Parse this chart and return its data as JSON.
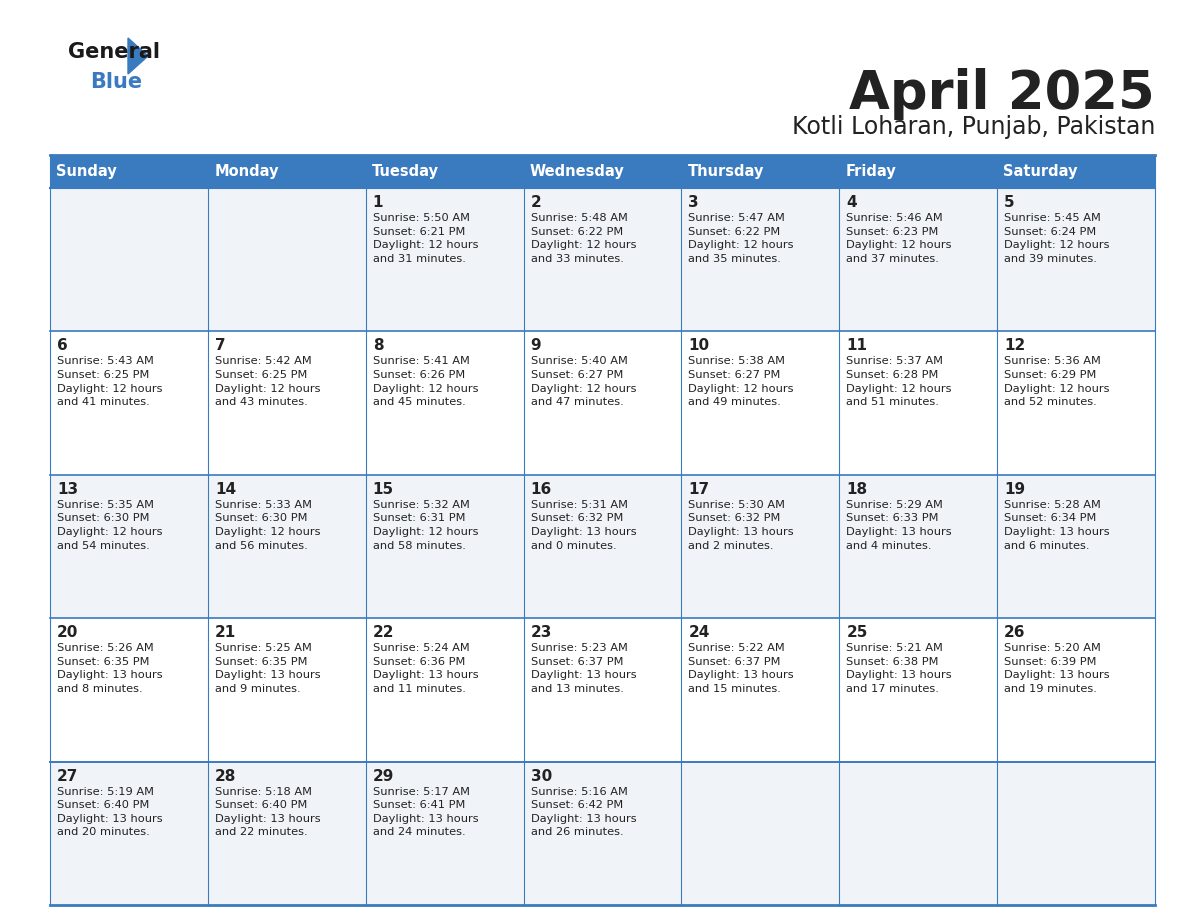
{
  "title": "April 2025",
  "subtitle": "Kotli Loharan, Punjab, Pakistan",
  "header_color": "#3a7abf",
  "header_text_color": "#ffffff",
  "days_of_week": [
    "Sunday",
    "Monday",
    "Tuesday",
    "Wednesday",
    "Thursday",
    "Friday",
    "Saturday"
  ],
  "background_color": "#ffffff",
  "row_bg": [
    "#f0f4f8",
    "#ffffff",
    "#f0f4f8",
    "#ffffff",
    "#f0f4f8"
  ],
  "border_color": "#3a7abf",
  "text_color": "#222222",
  "calendar_data": [
    [
      {
        "day": "",
        "sunrise": "",
        "sunset": "",
        "hours": "",
        "minutes": ""
      },
      {
        "day": "",
        "sunrise": "",
        "sunset": "",
        "hours": "",
        "minutes": ""
      },
      {
        "day": "1",
        "sunrise": "5:50 AM",
        "sunset": "6:21 PM",
        "hours": "12",
        "minutes": "31"
      },
      {
        "day": "2",
        "sunrise": "5:48 AM",
        "sunset": "6:22 PM",
        "hours": "12",
        "minutes": "33"
      },
      {
        "day": "3",
        "sunrise": "5:47 AM",
        "sunset": "6:22 PM",
        "hours": "12",
        "minutes": "35"
      },
      {
        "day": "4",
        "sunrise": "5:46 AM",
        "sunset": "6:23 PM",
        "hours": "12",
        "minutes": "37"
      },
      {
        "day": "5",
        "sunrise": "5:45 AM",
        "sunset": "6:24 PM",
        "hours": "12",
        "minutes": "39"
      }
    ],
    [
      {
        "day": "6",
        "sunrise": "5:43 AM",
        "sunset": "6:25 PM",
        "hours": "12",
        "minutes": "41"
      },
      {
        "day": "7",
        "sunrise": "5:42 AM",
        "sunset": "6:25 PM",
        "hours": "12",
        "minutes": "43"
      },
      {
        "day": "8",
        "sunrise": "5:41 AM",
        "sunset": "6:26 PM",
        "hours": "12",
        "minutes": "45"
      },
      {
        "day": "9",
        "sunrise": "5:40 AM",
        "sunset": "6:27 PM",
        "hours": "12",
        "minutes": "47"
      },
      {
        "day": "10",
        "sunrise": "5:38 AM",
        "sunset": "6:27 PM",
        "hours": "12",
        "minutes": "49"
      },
      {
        "day": "11",
        "sunrise": "5:37 AM",
        "sunset": "6:28 PM",
        "hours": "12",
        "minutes": "51"
      },
      {
        "day": "12",
        "sunrise": "5:36 AM",
        "sunset": "6:29 PM",
        "hours": "12",
        "minutes": "52"
      }
    ],
    [
      {
        "day": "13",
        "sunrise": "5:35 AM",
        "sunset": "6:30 PM",
        "hours": "12",
        "minutes": "54"
      },
      {
        "day": "14",
        "sunrise": "5:33 AM",
        "sunset": "6:30 PM",
        "hours": "12",
        "minutes": "56"
      },
      {
        "day": "15",
        "sunrise": "5:32 AM",
        "sunset": "6:31 PM",
        "hours": "12",
        "minutes": "58"
      },
      {
        "day": "16",
        "sunrise": "5:31 AM",
        "sunset": "6:32 PM",
        "hours": "13",
        "minutes": "0"
      },
      {
        "day": "17",
        "sunrise": "5:30 AM",
        "sunset": "6:32 PM",
        "hours": "13",
        "minutes": "2"
      },
      {
        "day": "18",
        "sunrise": "5:29 AM",
        "sunset": "6:33 PM",
        "hours": "13",
        "minutes": "4"
      },
      {
        "day": "19",
        "sunrise": "5:28 AM",
        "sunset": "6:34 PM",
        "hours": "13",
        "minutes": "6"
      }
    ],
    [
      {
        "day": "20",
        "sunrise": "5:26 AM",
        "sunset": "6:35 PM",
        "hours": "13",
        "minutes": "8"
      },
      {
        "day": "21",
        "sunrise": "5:25 AM",
        "sunset": "6:35 PM",
        "hours": "13",
        "minutes": "9"
      },
      {
        "day": "22",
        "sunrise": "5:24 AM",
        "sunset": "6:36 PM",
        "hours": "13",
        "minutes": "11"
      },
      {
        "day": "23",
        "sunrise": "5:23 AM",
        "sunset": "6:37 PM",
        "hours": "13",
        "minutes": "13"
      },
      {
        "day": "24",
        "sunrise": "5:22 AM",
        "sunset": "6:37 PM",
        "hours": "13",
        "minutes": "15"
      },
      {
        "day": "25",
        "sunrise": "5:21 AM",
        "sunset": "6:38 PM",
        "hours": "13",
        "minutes": "17"
      },
      {
        "day": "26",
        "sunrise": "5:20 AM",
        "sunset": "6:39 PM",
        "hours": "13",
        "minutes": "19"
      }
    ],
    [
      {
        "day": "27",
        "sunrise": "5:19 AM",
        "sunset": "6:40 PM",
        "hours": "13",
        "minutes": "20"
      },
      {
        "day": "28",
        "sunrise": "5:18 AM",
        "sunset": "6:40 PM",
        "hours": "13",
        "minutes": "22"
      },
      {
        "day": "29",
        "sunrise": "5:17 AM",
        "sunset": "6:41 PM",
        "hours": "13",
        "minutes": "24"
      },
      {
        "day": "30",
        "sunrise": "5:16 AM",
        "sunset": "6:42 PM",
        "hours": "13",
        "minutes": "26"
      },
      {
        "day": "",
        "sunrise": "",
        "sunset": "",
        "hours": "",
        "minutes": ""
      },
      {
        "day": "",
        "sunrise": "",
        "sunset": "",
        "hours": "",
        "minutes": ""
      },
      {
        "day": "",
        "sunrise": "",
        "sunset": "",
        "hours": "",
        "minutes": ""
      }
    ]
  ],
  "logo_general_color": "#1a1a1a",
  "logo_blue_color": "#3a7abf",
  "logo_triangle_color": "#3a7abf"
}
